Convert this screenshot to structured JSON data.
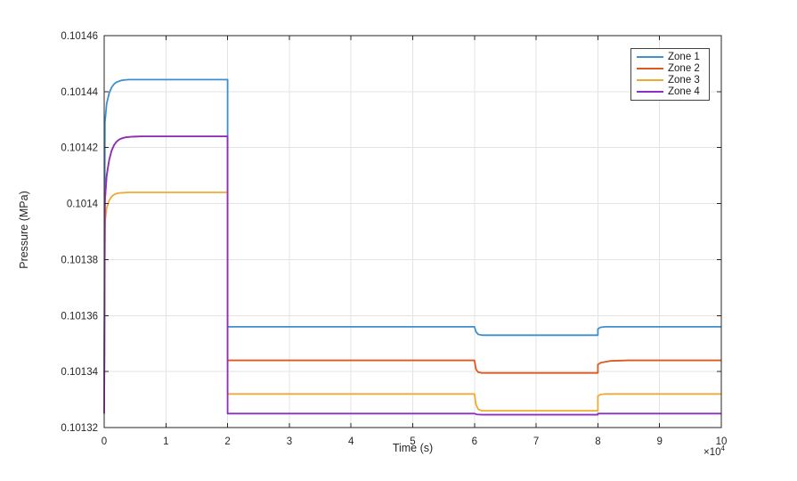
{
  "chart_data": {
    "type": "line",
    "title": "",
    "xlabel": "Time (s)",
    "ylabel": "Pressure (MPa)",
    "x_exponent": {
      "base": "×10",
      "power": "4"
    },
    "xlim": [
      0,
      100000
    ],
    "ylim": [
      0.10132,
      0.10146
    ],
    "grid": true,
    "legend_position": "top-right",
    "axis_color": "#262626",
    "grid_color": "#e3e3e3",
    "x_ticks": {
      "values": [
        0,
        10000,
        20000,
        30000,
        40000,
        50000,
        60000,
        70000,
        80000,
        90000,
        100000
      ],
      "labels": [
        "0",
        "1",
        "2",
        "3",
        "4",
        "5",
        "6",
        "7",
        "8",
        "9",
        "10"
      ]
    },
    "y_ticks": {
      "values": [
        0.10132,
        0.10134,
        0.10136,
        0.10138,
        0.1014,
        0.10142,
        0.10144,
        0.10146
      ],
      "labels": [
        "0.10132",
        "0.10134",
        "0.10136",
        "0.10138",
        "0.1014",
        "0.10142",
        "0.10144",
        "0.10146"
      ]
    },
    "series": [
      {
        "name": "Zone 1",
        "color": "#3f8fcc",
        "points": [
          [
            0,
            0.101325
          ],
          [
            120,
            0.101429
          ],
          [
            400,
            0.1014357
          ],
          [
            800,
            0.1014394
          ],
          [
            1200,
            0.1014415
          ],
          [
            1600,
            0.1014427
          ],
          [
            2000,
            0.1014434
          ],
          [
            2500,
            0.1014438
          ],
          [
            3000,
            0.1014441
          ],
          [
            4000,
            0.1014443
          ],
          [
            20000,
            0.1014443
          ],
          [
            20000,
            0.101356
          ],
          [
            60000,
            0.101356
          ],
          [
            60250,
            0.1013542
          ],
          [
            60600,
            0.1013533
          ],
          [
            61200,
            0.101353
          ],
          [
            80000,
            0.101353
          ],
          [
            80000,
            0.1013552
          ],
          [
            80400,
            0.1013558
          ],
          [
            81200,
            0.101356
          ],
          [
            100000,
            0.101356
          ]
        ]
      },
      {
        "name": "Zone 2",
        "color": "#d95a1e",
        "points": [
          [
            0,
            0.101325
          ],
          [
            120,
            0.101401
          ],
          [
            400,
            0.10141
          ],
          [
            800,
            0.1014155
          ],
          [
            1200,
            0.1014189
          ],
          [
            1600,
            0.1014209
          ],
          [
            2000,
            0.1014221
          ],
          [
            2500,
            0.101423
          ],
          [
            3000,
            0.1014234
          ],
          [
            3500,
            0.1014237
          ],
          [
            4500,
            0.1014239
          ],
          [
            6000,
            0.101424
          ],
          [
            20000,
            0.101424
          ],
          [
            20000,
            0.101344
          ],
          [
            60000,
            0.101344
          ],
          [
            60250,
            0.1013408
          ],
          [
            60600,
            0.1013398
          ],
          [
            61200,
            0.1013395
          ],
          [
            80000,
            0.1013395
          ],
          [
            80000,
            0.1013425
          ],
          [
            80500,
            0.1013432
          ],
          [
            82000,
            0.1013438
          ],
          [
            85000,
            0.101344
          ],
          [
            100000,
            0.101344
          ]
        ]
      },
      {
        "name": "Zone 3",
        "color": "#efab30",
        "points": [
          [
            0,
            0.101325
          ],
          [
            120,
            0.101393
          ],
          [
            400,
            0.1013984
          ],
          [
            800,
            0.1014011
          ],
          [
            1200,
            0.1014025
          ],
          [
            1600,
            0.1014032
          ],
          [
            2000,
            0.1014036
          ],
          [
            2500,
            0.1014038
          ],
          [
            3200,
            0.1014039
          ],
          [
            4000,
            0.101404
          ],
          [
            20000,
            0.101404
          ],
          [
            20000,
            0.101332
          ],
          [
            60000,
            0.101332
          ],
          [
            60250,
            0.1013282
          ],
          [
            60600,
            0.1013266
          ],
          [
            61200,
            0.101326
          ],
          [
            80000,
            0.101326
          ],
          [
            80000,
            0.1013312
          ],
          [
            80400,
            0.1013318
          ],
          [
            81200,
            0.101332
          ],
          [
            100000,
            0.101332
          ]
        ]
      },
      {
        "name": "Zone 4",
        "color": "#8e2fc3",
        "points": [
          [
            0,
            0.101325
          ],
          [
            120,
            0.101401
          ],
          [
            400,
            0.10141
          ],
          [
            800,
            0.1014155
          ],
          [
            1200,
            0.1014189
          ],
          [
            1600,
            0.1014209
          ],
          [
            2000,
            0.1014221
          ],
          [
            2500,
            0.101423
          ],
          [
            3000,
            0.1014234
          ],
          [
            3500,
            0.1014237
          ],
          [
            4500,
            0.1014239
          ],
          [
            6000,
            0.101424
          ],
          [
            20000,
            0.101424
          ],
          [
            20000,
            0.101325
          ],
          [
            60000,
            0.101325
          ],
          [
            60400,
            0.1013247
          ],
          [
            61200,
            0.1013246
          ],
          [
            80000,
            0.1013246
          ],
          [
            80000,
            0.101325
          ],
          [
            100000,
            0.101325
          ]
        ]
      }
    ]
  }
}
